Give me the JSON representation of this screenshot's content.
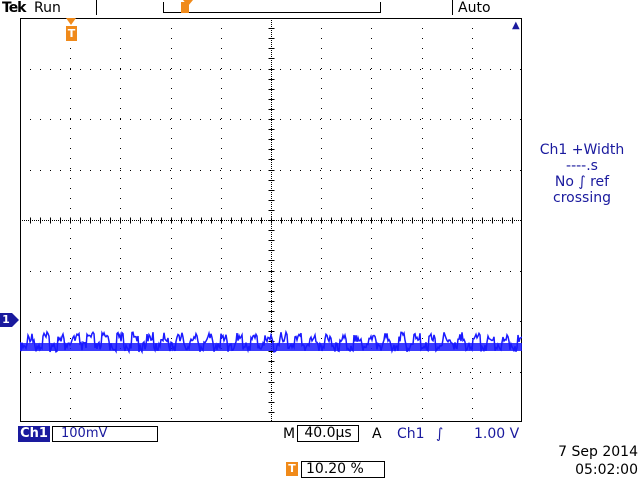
{
  "header": {
    "brand": "Tek",
    "acq_state": "Run",
    "trigger_mode": "Auto"
  },
  "markers": {
    "trigger_pos_glyph": "T",
    "channel_glyph": "1",
    "level_glyph": "▲"
  },
  "measurement": {
    "line1": "Ch1 +Width",
    "line2": "----.s",
    "line3": "No ∫ ref",
    "line4": "crossing"
  },
  "status": {
    "channel": "Ch1",
    "volts_per_div": "100mV",
    "timebase_prefix": "M",
    "timebase": "40.0µs",
    "trigger_prefix": "A",
    "trigger_source": "Ch1",
    "trigger_slope": "∫",
    "trigger_level": "1.00 V",
    "trigger_position_glyph": "T",
    "trigger_position": "10.20 %",
    "date": "7 Sep  2014",
    "time": "05:02:00"
  },
  "colors": {
    "trace": "#1a1aff",
    "channel": "#1a1a9e",
    "trigger_marker": "#f08a1a",
    "graticule": "#000000"
  }
}
